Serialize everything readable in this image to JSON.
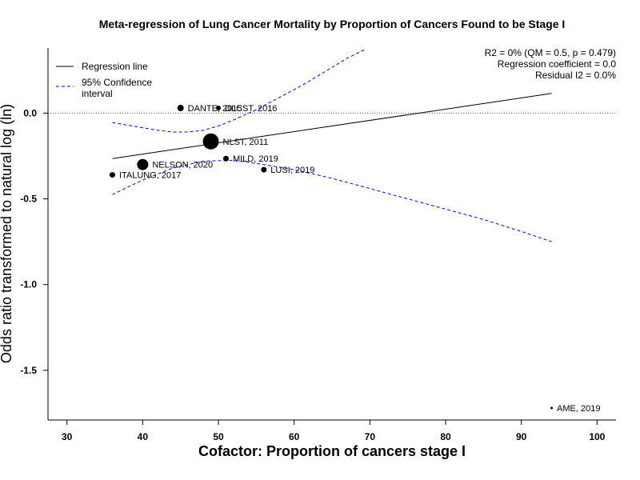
{
  "chart_data": {
    "type": "scatter",
    "title": "Meta-regression of  Lung Cancer Mortality by Proportion of Cancers Found to be Stage I",
    "xlabel": "Cofactor:  Proportion of cancers stage I",
    "ylabel": "Odds ratio transformed to natural log (ln)",
    "xlim": [
      27.5,
      102.5
    ],
    "ylim": [
      -1.79,
      0.38
    ],
    "x_ticks": [
      30,
      40,
      50,
      60,
      70,
      80,
      90,
      100
    ],
    "y_ticks": [
      0.0,
      -0.5,
      -1.0,
      -1.5
    ],
    "y_tick_labels": [
      "0.0",
      "-0.5",
      "-1.0",
      "-1.5"
    ],
    "reference_line_y": 0.0,
    "stats": {
      "line1": "R2 = 0% (QM = 0.5, p = 0.479)",
      "line2": "Regression coefficient = 0.0",
      "line3": "Residual I2 = 0.0%"
    },
    "legend": {
      "position": "top-left",
      "items": [
        {
          "label": "Regression line",
          "style": "solid"
        },
        {
          "label": "95% Confidence",
          "label2": "interval",
          "style": "dashed"
        }
      ]
    },
    "points": [
      {
        "label": "DANTE, 2015",
        "x": 45,
        "y": 0.03,
        "size": 4
      },
      {
        "label": "DLCST, 2016",
        "x": 50,
        "y": 0.03,
        "size": 3
      },
      {
        "label": "NLST, 2011",
        "x": 49,
        "y": -0.165,
        "size": 10
      },
      {
        "label": "MILD, 2019",
        "x": 51,
        "y": -0.265,
        "size": 3.5
      },
      {
        "label": "NELSON, 2020",
        "x": 40,
        "y": -0.3,
        "size": 7
      },
      {
        "label": "LUSI, 2019",
        "x": 56,
        "y": -0.33,
        "size": 3.5
      },
      {
        "label": "ITALUNG, 2017",
        "x": 36,
        "y": -0.36,
        "size": 3.5
      },
      {
        "label": "AME, 2019",
        "x": 94,
        "y": -1.72,
        "size": 1.5
      }
    ],
    "regression_line": {
      "x": [
        36,
        94
      ],
      "y": [
        -0.265,
        0.115
      ]
    },
    "ci_upper": {
      "x": [
        36,
        40,
        42,
        44,
        46,
        48,
        50,
        52,
        55,
        58,
        61,
        64,
        67,
        69.5
      ],
      "y": [
        -0.055,
        -0.085,
        -0.1,
        -0.11,
        -0.11,
        -0.1,
        -0.075,
        -0.04,
        0.02,
        0.09,
        0.16,
        0.24,
        0.32,
        0.375
      ]
    },
    "ci_lower": {
      "x": [
        36,
        40,
        44,
        48,
        52,
        56,
        60,
        65,
        70,
        75,
        80,
        85,
        90,
        94
      ],
      "y": [
        -0.475,
        -0.39,
        -0.32,
        -0.28,
        -0.275,
        -0.3,
        -0.33,
        -0.38,
        -0.44,
        -0.5,
        -0.56,
        -0.62,
        -0.69,
        -0.75
      ]
    },
    "colors": {
      "regression": "#000000",
      "confidence": "#0000ff",
      "points": "#000000",
      "reference": "#555555"
    },
    "grid": false
  }
}
